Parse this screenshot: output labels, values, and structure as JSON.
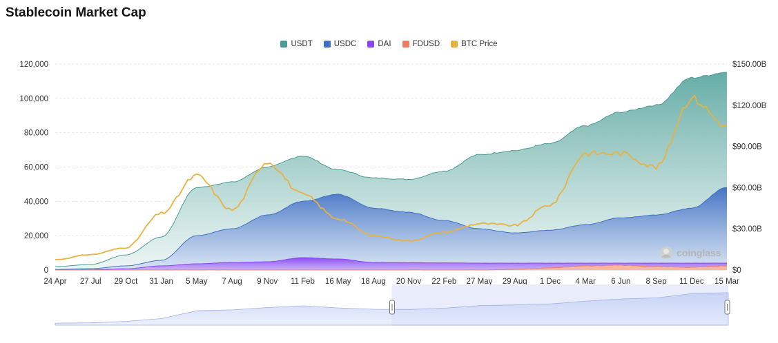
{
  "title": "Stablecoin Market Cap",
  "watermark": "coinglass",
  "legend": [
    {
      "name": "USDT",
      "color": "#4a9a95"
    },
    {
      "name": "USDC",
      "color": "#3f6fc4"
    },
    {
      "name": "DAI",
      "color": "#8a45f0"
    },
    {
      "name": "FDUSD",
      "color": "#ef7d62"
    },
    {
      "name": "BTC Price",
      "color": "#e8b23f"
    }
  ],
  "chart_data": {
    "type": "area",
    "title": "Stablecoin Market Cap",
    "x": [
      "24 Apr",
      "27 Jul",
      "29 Oct",
      "31 Jan",
      "5 May",
      "7 Aug",
      "9 Nov",
      "11 Feb",
      "16 May",
      "18 Aug",
      "20 Nov",
      "22 Feb",
      "27 May",
      "29 Aug",
      "1 Dec",
      "4 Mar",
      "6 Jun",
      "8 Sep",
      "11 Dec",
      "15 Mar"
    ],
    "y_left": {
      "ticks": [
        "0",
        "20,000",
        "40,000",
        "60,000",
        "80,000",
        "100,000",
        "120,000"
      ],
      "ylim": [
        0,
        120000
      ]
    },
    "y_right": {
      "ticks": [
        "$0",
        "$30.00B",
        "$60.00B",
        "$90.00B",
        "$120.00B",
        "$150.00B"
      ],
      "ylim": [
        0,
        150
      ]
    },
    "series": [
      {
        "name": "USDT",
        "axis": "right",
        "values": [
          2.5,
          4,
          11,
          24,
          60,
          64,
          75,
          83,
          73,
          67,
          66,
          72,
          84,
          87,
          92,
          105,
          115,
          120,
          140,
          144
        ]
      },
      {
        "name": "USDC",
        "axis": "right",
        "values": [
          0.4,
          1,
          3,
          7,
          25,
          30,
          40,
          50,
          55,
          45,
          42,
          36,
          30,
          27,
          29,
          33,
          38,
          40,
          45,
          60
        ]
      },
      {
        "name": "DAI",
        "axis": "right",
        "values": [
          0.1,
          0.2,
          0.9,
          3,
          4.5,
          5.5,
          6,
          9,
          8,
          5.5,
          5.3,
          5.2,
          5,
          5,
          5,
          5,
          5,
          5,
          5,
          5
        ]
      },
      {
        "name": "FDUSD",
        "axis": "right",
        "values": [
          0,
          0,
          0,
          0,
          0,
          0,
          0,
          0,
          0,
          0,
          0,
          0,
          0,
          0.5,
          1.5,
          3,
          3.5,
          2.5,
          2,
          3
        ]
      },
      {
        "name": "BTC Price",
        "axis": "left",
        "values": [
          6000,
          9000,
          13000,
          33000,
          55000,
          35000,
          63000,
          44000,
          30000,
          20000,
          17000,
          22000,
          27000,
          26000,
          38000,
          68000,
          68000,
          60000,
          100000,
          84000
        ]
      }
    ],
    "grid": true,
    "legend_position": "top-center"
  },
  "navigator": {
    "selection": [
      0.5,
      1.0
    ]
  }
}
